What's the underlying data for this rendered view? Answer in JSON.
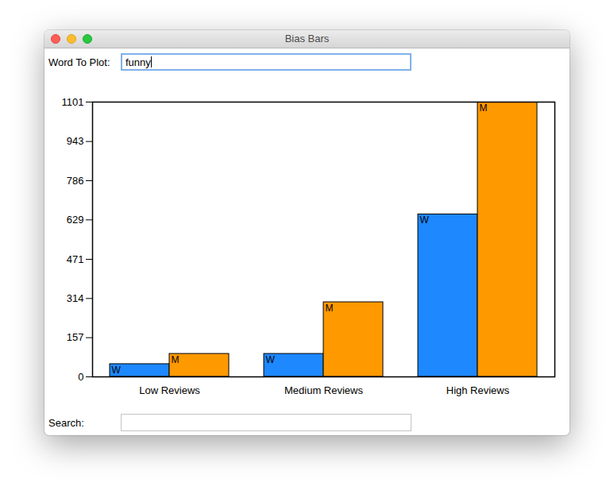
{
  "window": {
    "title": "Bias Bars",
    "word_label": "Word To Plot:",
    "word_value": "funny",
    "search_label": "Search:"
  },
  "chart_data": {
    "type": "bar",
    "categories": [
      "Low Reviews",
      "Medium Reviews",
      "High Reviews"
    ],
    "series": [
      {
        "name": "W",
        "color": "#1e88fe",
        "values": [
          51,
          92,
          651
        ]
      },
      {
        "name": "M",
        "color": "#ff9900",
        "values": [
          92,
          299,
          1101
        ]
      }
    ],
    "ylim": [
      0,
      1101
    ],
    "yticks": [
      0,
      157,
      314,
      471,
      629,
      786,
      943,
      1101
    ]
  }
}
